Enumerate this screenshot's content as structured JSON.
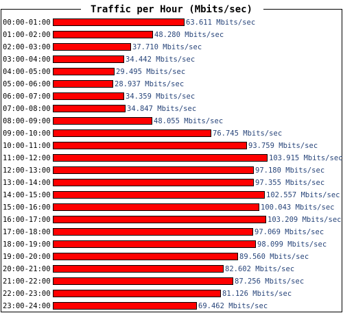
{
  "chart_data": {
    "type": "bar",
    "orientation": "horizontal",
    "title": "Traffic per Hour (Mbits/sec)",
    "unit": "Mbits/sec",
    "categories": [
      "00:00-01:00",
      "01:00-02:00",
      "02:00-03:00",
      "03:00-04:00",
      "04:00-05:00",
      "05:00-06:00",
      "06:00-07:00",
      "07:00-08:00",
      "08:00-09:00",
      "09:00-10:00",
      "10:00-11:00",
      "11:00-12:00",
      "12:00-13:00",
      "13:00-14:00",
      "14:00-15:00",
      "15:00-16:00",
      "16:00-17:00",
      "17:00-18:00",
      "18:00-19:00",
      "19:00-20:00",
      "20:00-21:00",
      "21:00-22:00",
      "22:00-23:00",
      "23:00-24:00"
    ],
    "values": [
      63.611,
      48.28,
      37.71,
      34.442,
      29.495,
      28.937,
      34.359,
      34.847,
      48.055,
      76.745,
      93.759,
      103.915,
      97.18,
      97.355,
      102.557,
      100.043,
      103.209,
      97.069,
      98.099,
      89.56,
      82.602,
      87.256,
      81.126,
      69.462
    ],
    "value_labels": [
      "63.611 Mbits/sec",
      "48.280 Mbits/sec",
      "37.710 Mbits/sec",
      "34.442 Mbits/sec",
      "29.495 Mbits/sec",
      "28.937 Mbits/sec",
      "34.359 Mbits/sec",
      "34.847 Mbits/sec",
      "48.055 Mbits/sec",
      "76.745 Mbits/sec",
      "93.759 Mbits/sec",
      "103.915 Mbits/sec",
      "97.180 Mbits/sec",
      "97.355 Mbits/sec",
      "102.557 Mbits/sec",
      "100.043 Mbits/sec",
      "103.209 Mbits/sec",
      "97.069 Mbits/sec",
      "98.099 Mbits/sec",
      "89.560 Mbits/sec",
      "82.602 Mbits/sec",
      "87.256 Mbits/sec",
      "81.126 Mbits/sec",
      "69.462 Mbits/sec"
    ],
    "xlim": [
      0,
      103.915
    ],
    "grid": false,
    "colors": {
      "bar_fill": "#ff0000",
      "bar_stroke": "#000000",
      "value_text": "#28457a",
      "label_text": "#000000"
    }
  }
}
